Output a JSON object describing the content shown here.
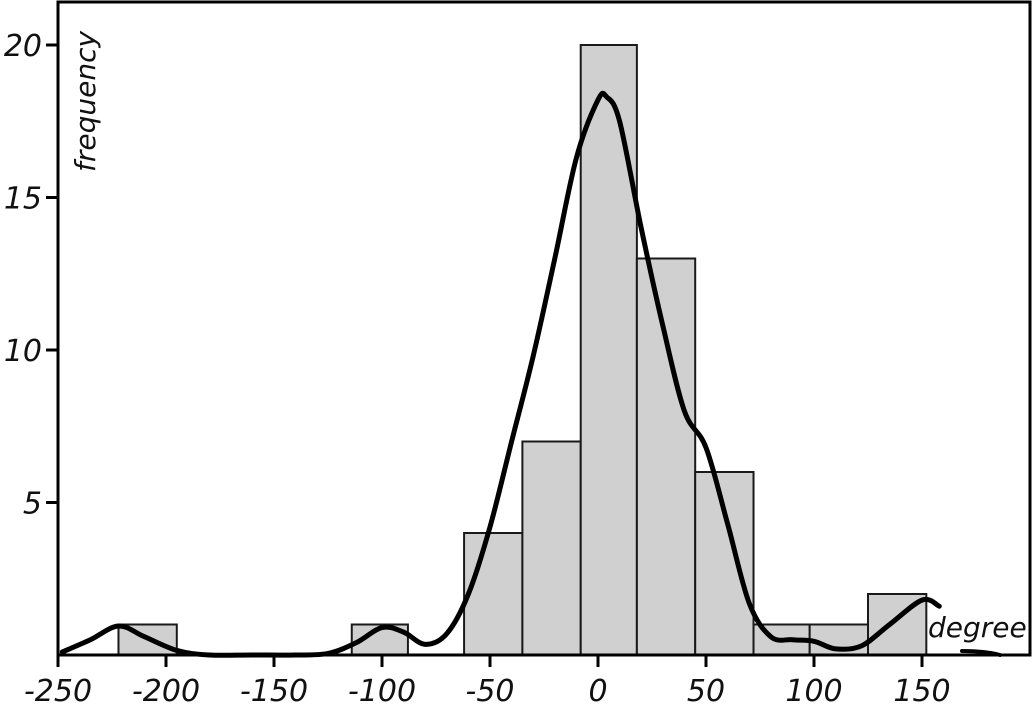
{
  "chart_data": {
    "type": "bar",
    "subtype": "histogram_with_density_curve",
    "title": "",
    "xlabel": "degree",
    "ylabel": "frequency",
    "xlim": [
      -250,
      190
    ],
    "ylim": [
      0,
      21.5
    ],
    "x_ticks": [
      -250,
      -200,
      -150,
      -100,
      -50,
      0,
      50,
      100,
      150
    ],
    "x_tick_labels": [
      "-250",
      "-200",
      "-150",
      "-100",
      "-50",
      "0",
      "50",
      "100",
      "150"
    ],
    "y_ticks": [
      5,
      10,
      15,
      20
    ],
    "y_tick_labels": [
      "5",
      "10",
      "15",
      "20"
    ],
    "grid": false,
    "legend": null,
    "bar_color": "#d0d0d0",
    "bar_edge_color": "#1a1a1a",
    "curve_color": "#000000",
    "bins": [
      {
        "x0": -222,
        "x1": -195,
        "count": 1
      },
      {
        "x0": -114,
        "x1": -88,
        "count": 1
      },
      {
        "x0": -62,
        "x1": -35,
        "count": 4
      },
      {
        "x0": -35,
        "x1": -8,
        "count": 7
      },
      {
        "x0": -8,
        "x1": 18,
        "count": 20
      },
      {
        "x0": 18,
        "x1": 45,
        "count": 13
      },
      {
        "x0": 45,
        "x1": 72,
        "count": 6
      },
      {
        "x0": 72,
        "x1": 98,
        "count": 1
      },
      {
        "x0": 98,
        "x1": 125,
        "count": 1
      },
      {
        "x0": 125,
        "x1": 152,
        "count": 2
      }
    ],
    "categories": [
      "-222 to -195",
      "-114 to -88",
      "-62 to -35",
      "-35 to -8",
      "-8 to 18",
      "18 to 45",
      "45 to 72",
      "72 to 98",
      "98 to 125",
      "125 to 152"
    ],
    "values": [
      1,
      1,
      4,
      7,
      20,
      13,
      6,
      1,
      1,
      2
    ],
    "density_curve": {
      "x": [
        -248,
        -235,
        -222,
        -210,
        -195,
        -180,
        -160,
        -140,
        -125,
        -112,
        -100,
        -90,
        -80,
        -70,
        -60,
        -50,
        -40,
        -30,
        -20,
        -10,
        0,
        4,
        10,
        20,
        30,
        40,
        50,
        60,
        70,
        80,
        90,
        100,
        110,
        122,
        135,
        150,
        158
      ],
      "y": [
        0.1,
        0.5,
        0.95,
        0.6,
        0.15,
        0.0,
        0.0,
        0.0,
        0.05,
        0.4,
        0.9,
        0.75,
        0.35,
        0.7,
        2.0,
        4.2,
        7.0,
        9.8,
        13.0,
        16.3,
        18.2,
        18.3,
        17.5,
        14.0,
        10.8,
        8.0,
        6.8,
        4.3,
        1.7,
        0.6,
        0.5,
        0.45,
        0.2,
        0.3,
        1.0,
        1.8,
        1.6
      ]
    }
  },
  "axes": {
    "x_label": "degree",
    "y_label": "frequency"
  }
}
